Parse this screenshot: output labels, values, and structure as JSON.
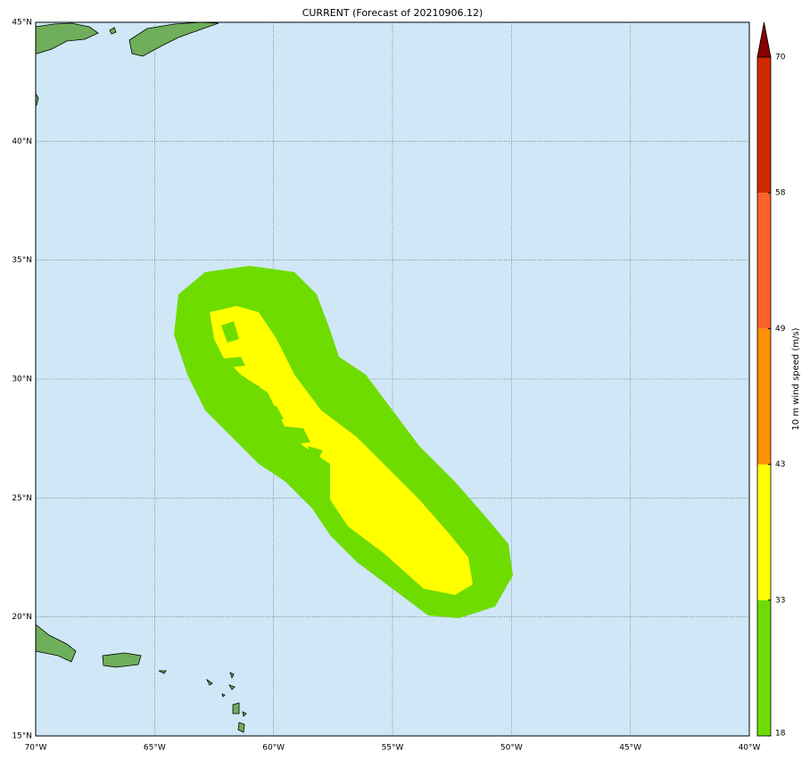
{
  "map": {
    "title": "CURRENT (Forecast of 20210906.12)",
    "lon_ticks": [
      {
        "value": -70,
        "label": "70°W"
      },
      {
        "value": -65,
        "label": "65°W"
      },
      {
        "value": -60,
        "label": "60°W"
      },
      {
        "value": -55,
        "label": "55°W"
      },
      {
        "value": -50,
        "label": "50°W"
      },
      {
        "value": -45,
        "label": "45°W"
      },
      {
        "value": -40,
        "label": "40°W"
      }
    ],
    "lat_ticks": [
      {
        "value": 15,
        "label": "15°N"
      },
      {
        "value": 20,
        "label": "20°N"
      },
      {
        "value": 25,
        "label": "25°N"
      },
      {
        "value": 30,
        "label": "30°N"
      },
      {
        "value": 35,
        "label": "35°N"
      },
      {
        "value": 40,
        "label": "40°N"
      },
      {
        "value": 45,
        "label": "45°N"
      }
    ],
    "colorbar": {
      "label": "10 m wind speed (m/s)",
      "ticks": [
        18,
        33,
        43,
        49,
        58,
        70
      ],
      "colors": [
        "#6fdc00",
        "#ffff00",
        "#ff9000",
        "#ff6228",
        "#d02800"
      ],
      "extend_color": "#880000"
    }
  }
}
